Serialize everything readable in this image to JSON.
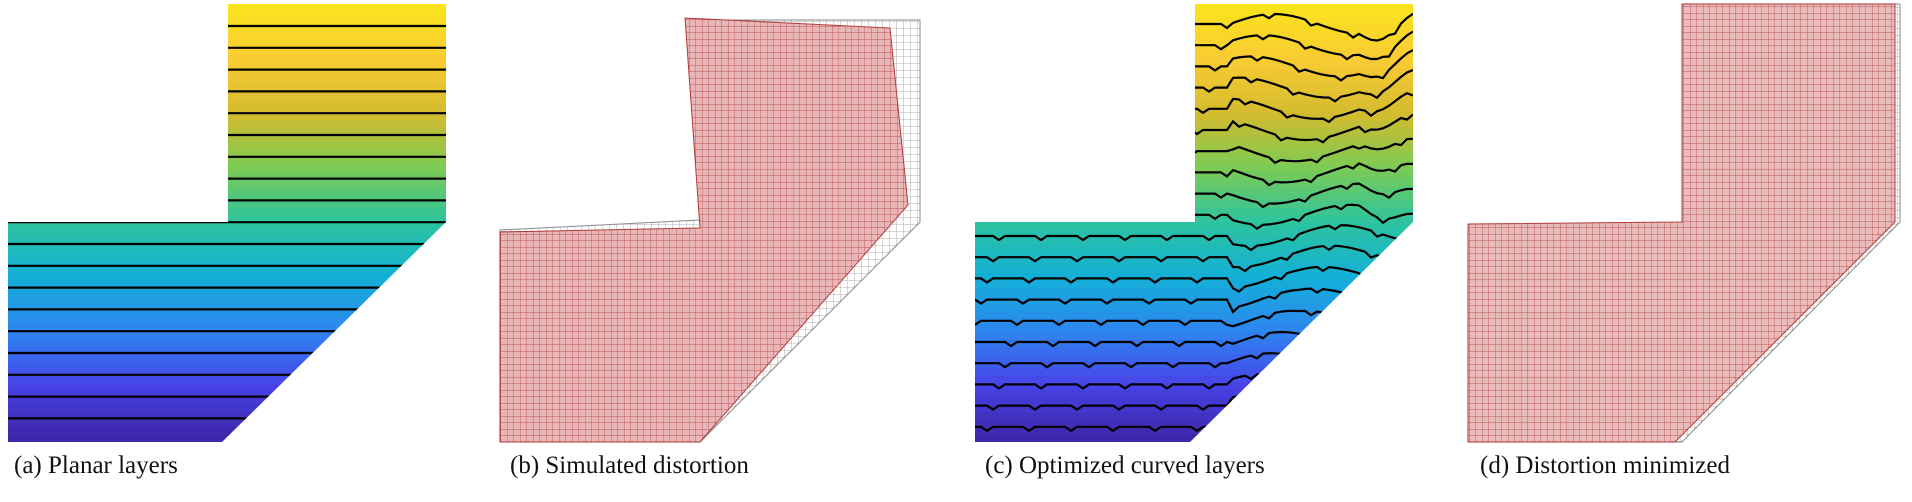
{
  "panels": [
    {
      "id": "a",
      "caption": "(a) Planar layers",
      "kind": "planar-layers"
    },
    {
      "id": "b",
      "caption": "(b) Simulated distortion",
      "kind": "distortion-grid"
    },
    {
      "id": "c",
      "caption": "(c) Optimized curved layers",
      "kind": "curved-layers"
    },
    {
      "id": "d",
      "caption": "(d) Distortion minimized",
      "kind": "minimized-grid"
    }
  ],
  "colors": {
    "colormap": [
      "#3E26A8",
      "#4744E8",
      "#2D87F0",
      "#13B0D6",
      "#2DC3A0",
      "#7BCB55",
      "#D2BB2E",
      "#F9CB34",
      "#F9E31D"
    ],
    "layer_line": "#000000",
    "deformed_mesh_fill": "#E8B4B4",
    "deformed_mesh_line": "#B03030",
    "reference_mesh_line": "#9A9A9A"
  }
}
